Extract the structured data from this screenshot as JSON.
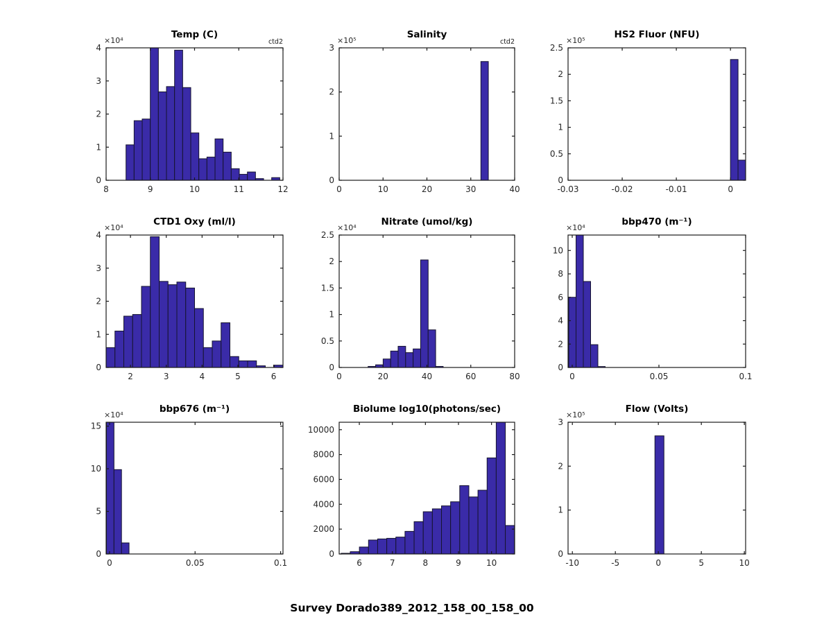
{
  "figure": {
    "title": "Survey Dorado389_2012_158_00_158_00",
    "background": "#ffffff",
    "bar_fill": "#3A2BA8",
    "bar_edge": "#16142F",
    "axis_color": "#1a1a1a",
    "tick_label_color": "#262626"
  },
  "chart_data": [
    {
      "type": "bar",
      "title": "Temp (C)",
      "annotation": "ctd2",
      "offset_text": "×10⁴",
      "xlim": [
        8,
        12
      ],
      "ylim": [
        0,
        4
      ],
      "xticks": [
        8,
        9,
        10,
        11,
        12
      ],
      "xtick_labels": [
        "8",
        "9",
        "10",
        "11",
        "12"
      ],
      "yticks": [
        0,
        1,
        2,
        3,
        4
      ],
      "ytick_labels": [
        "0",
        "1",
        "2",
        "3",
        "4"
      ],
      "bins": {
        "start": 8.45,
        "width": 0.183
      },
      "values": [
        1.07,
        1.8,
        1.85,
        4.0,
        2.67,
        2.83,
        3.93,
        2.8,
        1.43,
        0.65,
        0.7,
        1.25,
        0.85,
        0.35,
        0.18,
        0.25,
        0.05,
        0,
        0.08
      ],
      "value_scale": "1e4"
    },
    {
      "type": "bar",
      "title": "Salinity",
      "annotation": "ctd2",
      "offset_text": "×10⁵",
      "xlim": [
        0,
        40
      ],
      "ylim": [
        0,
        3
      ],
      "xticks": [
        0,
        10,
        20,
        30,
        40
      ],
      "xtick_labels": [
        "0",
        "10",
        "20",
        "30",
        "40"
      ],
      "yticks": [
        0,
        1,
        2,
        3
      ],
      "ytick_labels": [
        "0",
        "1",
        "2",
        "3"
      ],
      "bins": {
        "start": 32.3,
        "width": 1.7
      },
      "values": [
        2.69
      ],
      "value_scale": "1e5"
    },
    {
      "type": "bar",
      "title": "HS2 Fluor (NFU)",
      "offset_text": "×10⁵",
      "xlim": [
        -0.03,
        0.0028
      ],
      "ylim": [
        0,
        2.5
      ],
      "xticks": [
        -0.03,
        -0.02,
        -0.01,
        0
      ],
      "xtick_labels": [
        "-0.03",
        "-0.02",
        "-0.01",
        "0"
      ],
      "yticks": [
        0,
        0.5,
        1,
        1.5,
        2,
        2.5
      ],
      "ytick_labels": [
        "0",
        "0.5",
        "1",
        "1.5",
        "2",
        "2.5"
      ],
      "bins": {
        "start": 0,
        "width": 0.0014
      },
      "values": [
        2.28,
        0.38
      ],
      "value_scale": "1e5"
    },
    {
      "type": "bar",
      "title": "CTD1 Oxy (ml/l)",
      "offset_text": "×10⁴",
      "xlim": [
        1.32,
        6.26
      ],
      "ylim": [
        0,
        4
      ],
      "xticks": [
        2,
        3,
        4,
        5,
        6
      ],
      "xtick_labels": [
        "2",
        "3",
        "4",
        "5",
        "6"
      ],
      "yticks": [
        0,
        1,
        2,
        3,
        4
      ],
      "ytick_labels": [
        "0",
        "1",
        "2",
        "3",
        "4"
      ],
      "bins": {
        "start": 1.32,
        "width": 0.247
      },
      "values": [
        0.6,
        1.1,
        1.55,
        1.6,
        2.45,
        3.95,
        2.6,
        2.5,
        2.58,
        2.4,
        1.78,
        0.6,
        0.8,
        1.35,
        0.33,
        0.2,
        0.2,
        0.05,
        0,
        0.07
      ],
      "value_scale": "1e4"
    },
    {
      "type": "bar",
      "title": "Nitrate (umol/kg)",
      "offset_text": "×10⁴",
      "xlim": [
        0,
        80
      ],
      "ylim": [
        0,
        2.5
      ],
      "xticks": [
        0,
        20,
        40,
        60,
        80
      ],
      "xtick_labels": [
        "0",
        "20",
        "40",
        "60",
        "80"
      ],
      "yticks": [
        0,
        0.5,
        1,
        1.5,
        2,
        2.5
      ],
      "ytick_labels": [
        "0",
        "0.5",
        "1",
        "1.5",
        "2",
        "2.5"
      ],
      "bins": {
        "start": 13.2,
        "width": 3.42
      },
      "values": [
        0.02,
        0.05,
        0.16,
        0.31,
        0.4,
        0.28,
        0.35,
        2.03,
        0.71,
        0.02
      ],
      "value_scale": "1e4"
    },
    {
      "type": "bar",
      "title": "bbp470 (m⁻¹)",
      "offset_text": "×10⁴",
      "xlim": [
        -0.0024,
        0.1
      ],
      "ylim": [
        0,
        11.32
      ],
      "xticks": [
        0,
        0.05,
        0.1
      ],
      "xtick_labels": [
        "0",
        "0.05",
        "0.1"
      ],
      "yticks": [
        0,
        2,
        4,
        6,
        8,
        10
      ],
      "ytick_labels": [
        "0",
        "2",
        "4",
        "6",
        "8",
        "10"
      ],
      "bins": {
        "start": -0.002,
        "width": 0.0042
      },
      "values": [
        6.0,
        11.32,
        7.35,
        1.95,
        0.08
      ],
      "value_scale": "1e4"
    },
    {
      "type": "bar",
      "title": "bbp676 (m⁻¹)",
      "offset_text": "×10⁴",
      "xlim": [
        -0.002,
        0.1014
      ],
      "ylim": [
        0,
        15.46
      ],
      "xticks": [
        0,
        0.05,
        0.1
      ],
      "xtick_labels": [
        "0",
        "0.05",
        "0.1"
      ],
      "yticks": [
        0,
        5,
        10,
        15
      ],
      "ytick_labels": [
        "0",
        "5",
        "10",
        "15"
      ],
      "bins": {
        "start": -0.0018,
        "width": 0.0044
      },
      "values": [
        15.46,
        9.9,
        1.3
      ],
      "value_scale": "1e4"
    },
    {
      "type": "bar",
      "title": "Biolume log10(photons/sec)",
      "xlim": [
        5.39,
        10.7
      ],
      "ylim": [
        0,
        10600
      ],
      "xticks": [
        6,
        7,
        8,
        9,
        10
      ],
      "xtick_labels": [
        "6",
        "7",
        "8",
        "9",
        "10"
      ],
      "yticks": [
        0,
        2000,
        4000,
        6000,
        8000,
        10000
      ],
      "ytick_labels": [
        "0",
        "2000",
        "4000",
        "6000",
        "8000",
        "10000"
      ],
      "bins": {
        "start": 5.45,
        "width": 0.276
      },
      "values": [
        55,
        185,
        560,
        1120,
        1210,
        1260,
        1360,
        1820,
        2600,
        3400,
        3630,
        3870,
        4200,
        5500,
        4590,
        5130,
        7730,
        10600,
        2290
      ],
      "value_scale": "1"
    },
    {
      "type": "bar",
      "title": "Flow (Volts)",
      "offset_text": "×10⁵",
      "xlim": [
        -10.5,
        10.15
      ],
      "ylim": [
        0,
        3
      ],
      "xticks": [
        -10,
        -5,
        0,
        5,
        10
      ],
      "xtick_labels": [
        "-10",
        "-5",
        "0",
        "5",
        "10"
      ],
      "yticks": [
        0,
        1,
        2,
        3
      ],
      "ytick_labels": [
        "0",
        "1",
        "2",
        "3"
      ],
      "bins": {
        "start": -0.4,
        "width": 1.05
      },
      "values": [
        2.69
      ],
      "value_scale": "1e5"
    }
  ]
}
